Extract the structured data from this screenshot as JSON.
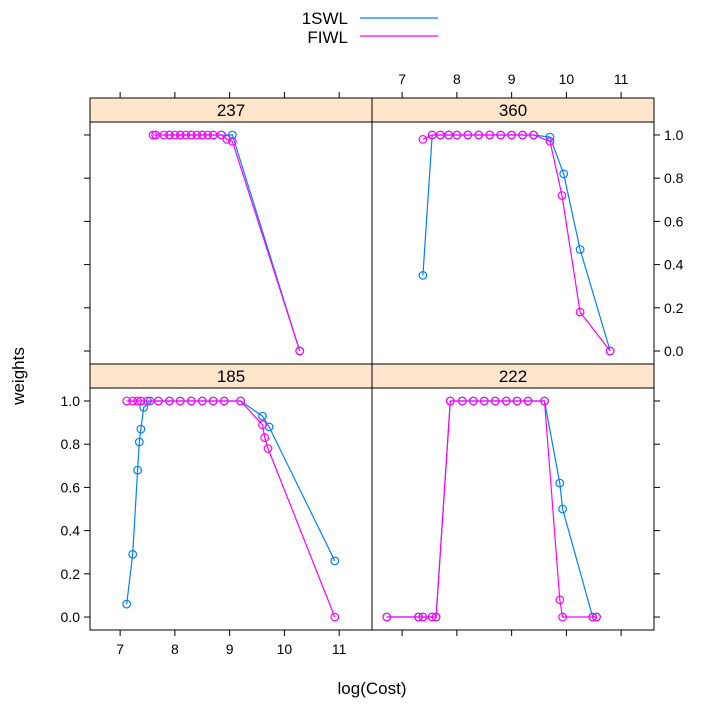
{
  "chart_data": {
    "type": "line",
    "xlabel": "log(Cost)",
    "ylabel": "weights",
    "xlim": [
      6.45,
      11.6
    ],
    "ylim": [
      -0.06,
      1.06
    ],
    "x_ticks": [
      7,
      8,
      9,
      10,
      11
    ],
    "y_ticks": [
      0.0,
      0.2,
      0.4,
      0.6,
      0.8,
      1.0
    ],
    "x_tick_labels": [
      "7",
      "8",
      "9",
      "10",
      "11"
    ],
    "y_tick_labels": [
      "0.0",
      "0.2",
      "0.4",
      "0.6",
      "0.8",
      "1.0"
    ],
    "legend": {
      "placement": "top",
      "entries": [
        {
          "name": "1SWL",
          "color": "#0080ff"
        },
        {
          "name": "FIWL",
          "color": "#ff00ff"
        }
      ]
    },
    "panels": [
      {
        "label": "237",
        "series": [
          {
            "name": "1SWL",
            "color": "#0080ff",
            "x": [
              7.65,
              7.9,
              8.1,
              8.3,
              8.5,
              8.7,
              8.85,
              9.05,
              10.28
            ],
            "y": [
              1.0,
              1.0,
              1.0,
              1.0,
              1.0,
              1.0,
              1.0,
              1.0,
              0.0
            ]
          },
          {
            "name": "FIWL",
            "color": "#ff00ff",
            "x": [
              7.6,
              7.65,
              7.8,
              7.9,
              8.0,
              8.1,
              8.2,
              8.3,
              8.4,
              8.5,
              8.6,
              8.7,
              8.85,
              8.95,
              9.05,
              10.28
            ],
            "y": [
              1.0,
              1.0,
              1.0,
              1.0,
              1.0,
              1.0,
              1.0,
              1.0,
              1.0,
              1.0,
              1.0,
              1.0,
              1.0,
              0.98,
              0.97,
              0.0
            ]
          }
        ]
      },
      {
        "label": "360",
        "series": [
          {
            "name": "1SWL",
            "color": "#0080ff",
            "x": [
              7.38,
              7.55,
              7.7,
              7.85,
              8.0,
              8.2,
              8.4,
              8.6,
              8.8,
              9.0,
              9.2,
              9.4,
              9.7,
              9.95,
              10.25,
              10.8
            ],
            "y": [
              0.35,
              1.0,
              1.0,
              1.0,
              1.0,
              1.0,
              1.0,
              1.0,
              1.0,
              1.0,
              1.0,
              1.0,
              0.99,
              0.82,
              0.47,
              0.0
            ]
          },
          {
            "name": "FIWL",
            "color": "#ff00ff",
            "x": [
              7.38,
              7.55,
              7.7,
              7.85,
              8.0,
              8.2,
              8.4,
              8.6,
              8.8,
              9.0,
              9.2,
              9.4,
              9.7,
              9.92,
              10.25,
              10.8
            ],
            "y": [
              0.98,
              1.0,
              1.0,
              1.0,
              1.0,
              1.0,
              1.0,
              1.0,
              1.0,
              1.0,
              1.0,
              1.0,
              0.97,
              0.72,
              0.18,
              0.0
            ]
          }
        ]
      },
      {
        "label": "185",
        "series": [
          {
            "name": "1SWL",
            "color": "#0080ff",
            "x": [
              7.12,
              7.23,
              7.32,
              7.35,
              7.38,
              7.43,
              7.55,
              7.7,
              7.9,
              8.1,
              8.3,
              8.5,
              8.7,
              8.9,
              9.2,
              9.6,
              9.72,
              10.92
            ],
            "y": [
              0.06,
              0.29,
              0.68,
              0.81,
              0.87,
              0.97,
              1.0,
              1.0,
              1.0,
              1.0,
              1.0,
              1.0,
              1.0,
              1.0,
              1.0,
              0.93,
              0.88,
              0.26
            ]
          },
          {
            "name": "FIWL",
            "color": "#ff00ff",
            "x": [
              7.12,
              7.23,
              7.32,
              7.38,
              7.5,
              7.7,
              7.9,
              8.1,
              8.3,
              8.5,
              8.7,
              8.9,
              9.2,
              9.6,
              9.64,
              9.7,
              10.92
            ],
            "y": [
              1.0,
              1.0,
              1.0,
              1.0,
              1.0,
              1.0,
              1.0,
              1.0,
              1.0,
              1.0,
              1.0,
              1.0,
              1.0,
              0.89,
              0.83,
              0.78,
              0.0
            ]
          }
        ]
      },
      {
        "label": "222",
        "series": [
          {
            "name": "1SWL",
            "color": "#0080ff",
            "x": [
              6.72,
              7.3,
              7.38,
              7.55,
              7.62,
              7.88,
              8.1,
              8.3,
              8.5,
              8.7,
              8.9,
              9.1,
              9.3,
              9.6,
              9.88,
              9.93,
              10.48,
              10.55
            ],
            "y": [
              0.0,
              0.0,
              0.0,
              0.0,
              0.0,
              1.0,
              1.0,
              1.0,
              1.0,
              1.0,
              1.0,
              1.0,
              1.0,
              1.0,
              0.62,
              0.5,
              0.0,
              0.0
            ]
          },
          {
            "name": "FIWL",
            "color": "#ff00ff",
            "x": [
              6.72,
              7.3,
              7.38,
              7.55,
              7.62,
              7.88,
              8.1,
              8.3,
              8.5,
              8.7,
              8.9,
              9.1,
              9.3,
              9.6,
              9.88,
              9.93,
              10.48,
              10.55
            ],
            "y": [
              0.0,
              0.0,
              0.0,
              0.0,
              0.0,
              1.0,
              1.0,
              1.0,
              1.0,
              1.0,
              1.0,
              1.0,
              1.0,
              1.0,
              0.08,
              0.0,
              0.0,
              0.0
            ]
          }
        ]
      }
    ]
  }
}
